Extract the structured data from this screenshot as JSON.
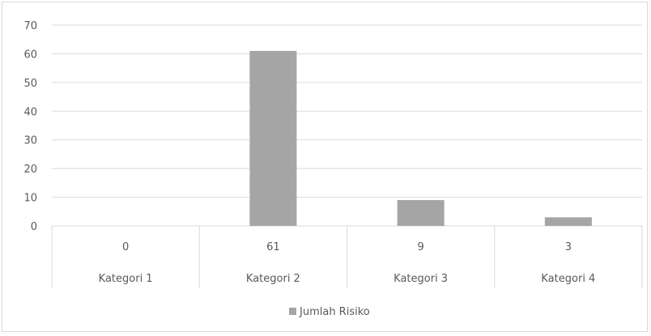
{
  "chart_data": {
    "type": "bar",
    "categories": [
      "Kategori 1",
      "Kategori 2",
      "Kategori 3",
      "Kategori 4"
    ],
    "series": [
      {
        "name": "Jumlah Risiko",
        "values": [
          0,
          61,
          9,
          3
        ]
      }
    ],
    "data_labels": [
      "0",
      "61",
      "9",
      "3"
    ],
    "y_ticks": [
      0,
      10,
      20,
      30,
      40,
      50,
      60,
      70
    ],
    "ylim": [
      0,
      70
    ],
    "grid": true,
    "legend_position": "bottom",
    "bar_color": "#a5a5a5",
    "gridline_color": "#d9d9d9"
  }
}
